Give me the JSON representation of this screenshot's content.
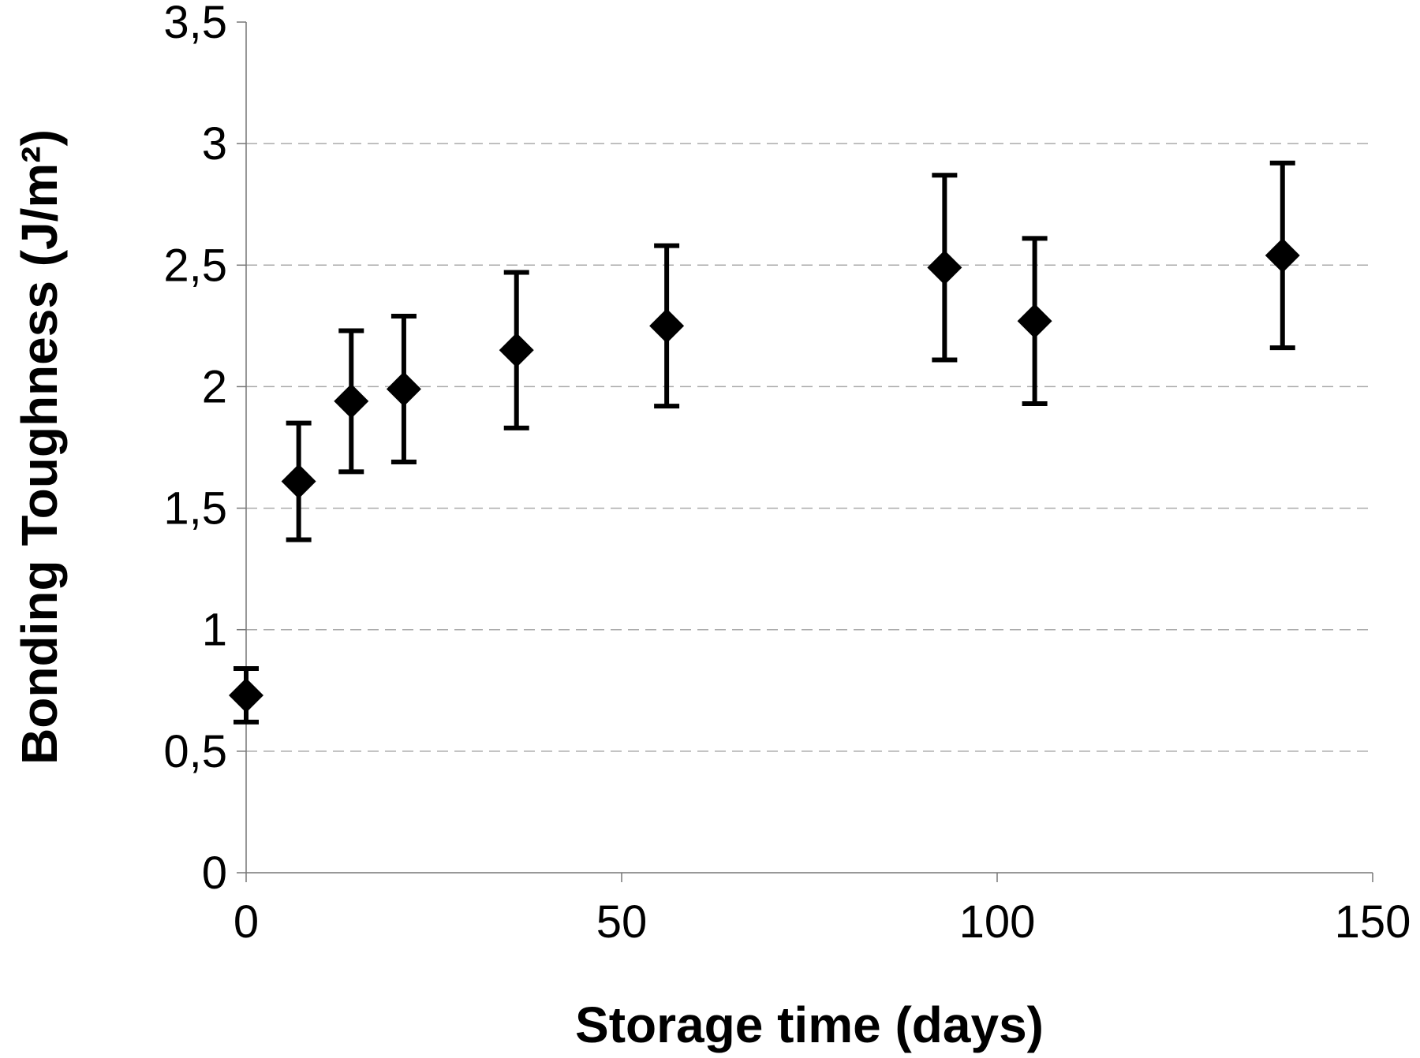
{
  "chart_data": {
    "type": "scatter",
    "x_label": "Storage time (days)",
    "y_label": "Bonding Toughness (J/m²)",
    "x": [
      0,
      7,
      14,
      21,
      36,
      56,
      93,
      105,
      138
    ],
    "values": [
      0.73,
      1.61,
      1.94,
      1.99,
      2.15,
      2.25,
      2.49,
      2.27,
      2.54
    ],
    "errors": [
      0.11,
      0.24,
      0.29,
      0.3,
      0.32,
      0.33,
      0.38,
      0.34,
      0.38
    ],
    "color": "#000000",
    "xlim": [
      0,
      150
    ],
    "xticks": [
      0,
      50,
      100,
      150
    ],
    "ylim": [
      0,
      3.5
    ],
    "yticks": [
      0,
      {
        "value": 0.5,
        "label": "0,5"
      },
      1,
      {
        "value": 1.5,
        "label": "1,5"
      },
      2,
      {
        "value": 2.5,
        "label": "2,5"
      },
      3,
      {
        "value": 3.5,
        "label": "3,5"
      }
    ],
    "grid": true
  }
}
